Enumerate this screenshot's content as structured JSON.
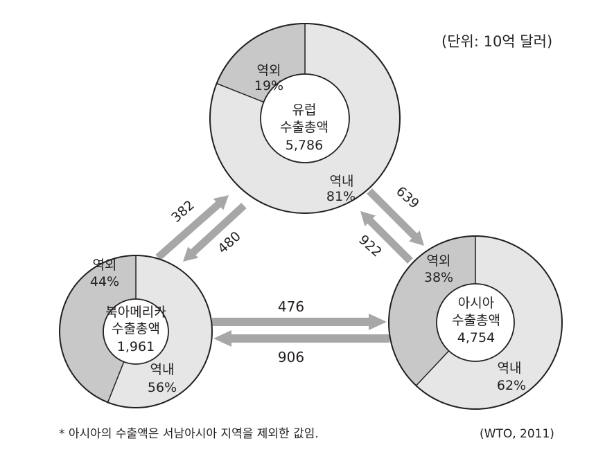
{
  "unit_label": "(단위: 10억 달러)",
  "regions": {
    "europe": {
      "name": "유럽",
      "total_label": "수출총액",
      "total_value": "5,786",
      "intra_label": "역내",
      "intra_pct": 81,
      "intra_text": "81%",
      "extra_label": "역외",
      "extra_pct": 19,
      "extra_text": "19%"
    },
    "north_america": {
      "name": "북아메리카",
      "total_label": "수출총액",
      "total_value": "1,961",
      "intra_label": "역내",
      "intra_pct": 56,
      "intra_text": "56%",
      "extra_label": "역외",
      "extra_pct": 44,
      "extra_text": "44%"
    },
    "asia": {
      "name": "아시아",
      "total_label": "수출총액",
      "total_value": "4,754",
      "intra_label": "역내",
      "intra_pct": 62,
      "intra_text": "62%",
      "extra_label": "역외",
      "extra_pct": 38,
      "extra_text": "38%"
    }
  },
  "flows": {
    "na_to_europe": "382",
    "europe_to_na": "480",
    "europe_to_asia": "639",
    "asia_to_europe": "922",
    "na_to_asia": "476",
    "asia_to_na": "906"
  },
  "footnote": "* 아시아의 수출액은 서남아시아 지역을 제외한 값임.",
  "source": "(WTO, 2011)",
  "colors": {
    "intra": "#e6e6e6",
    "extra": "#c8c8c8",
    "arrow": "#a7a7a7",
    "outline": "#231f20"
  }
}
